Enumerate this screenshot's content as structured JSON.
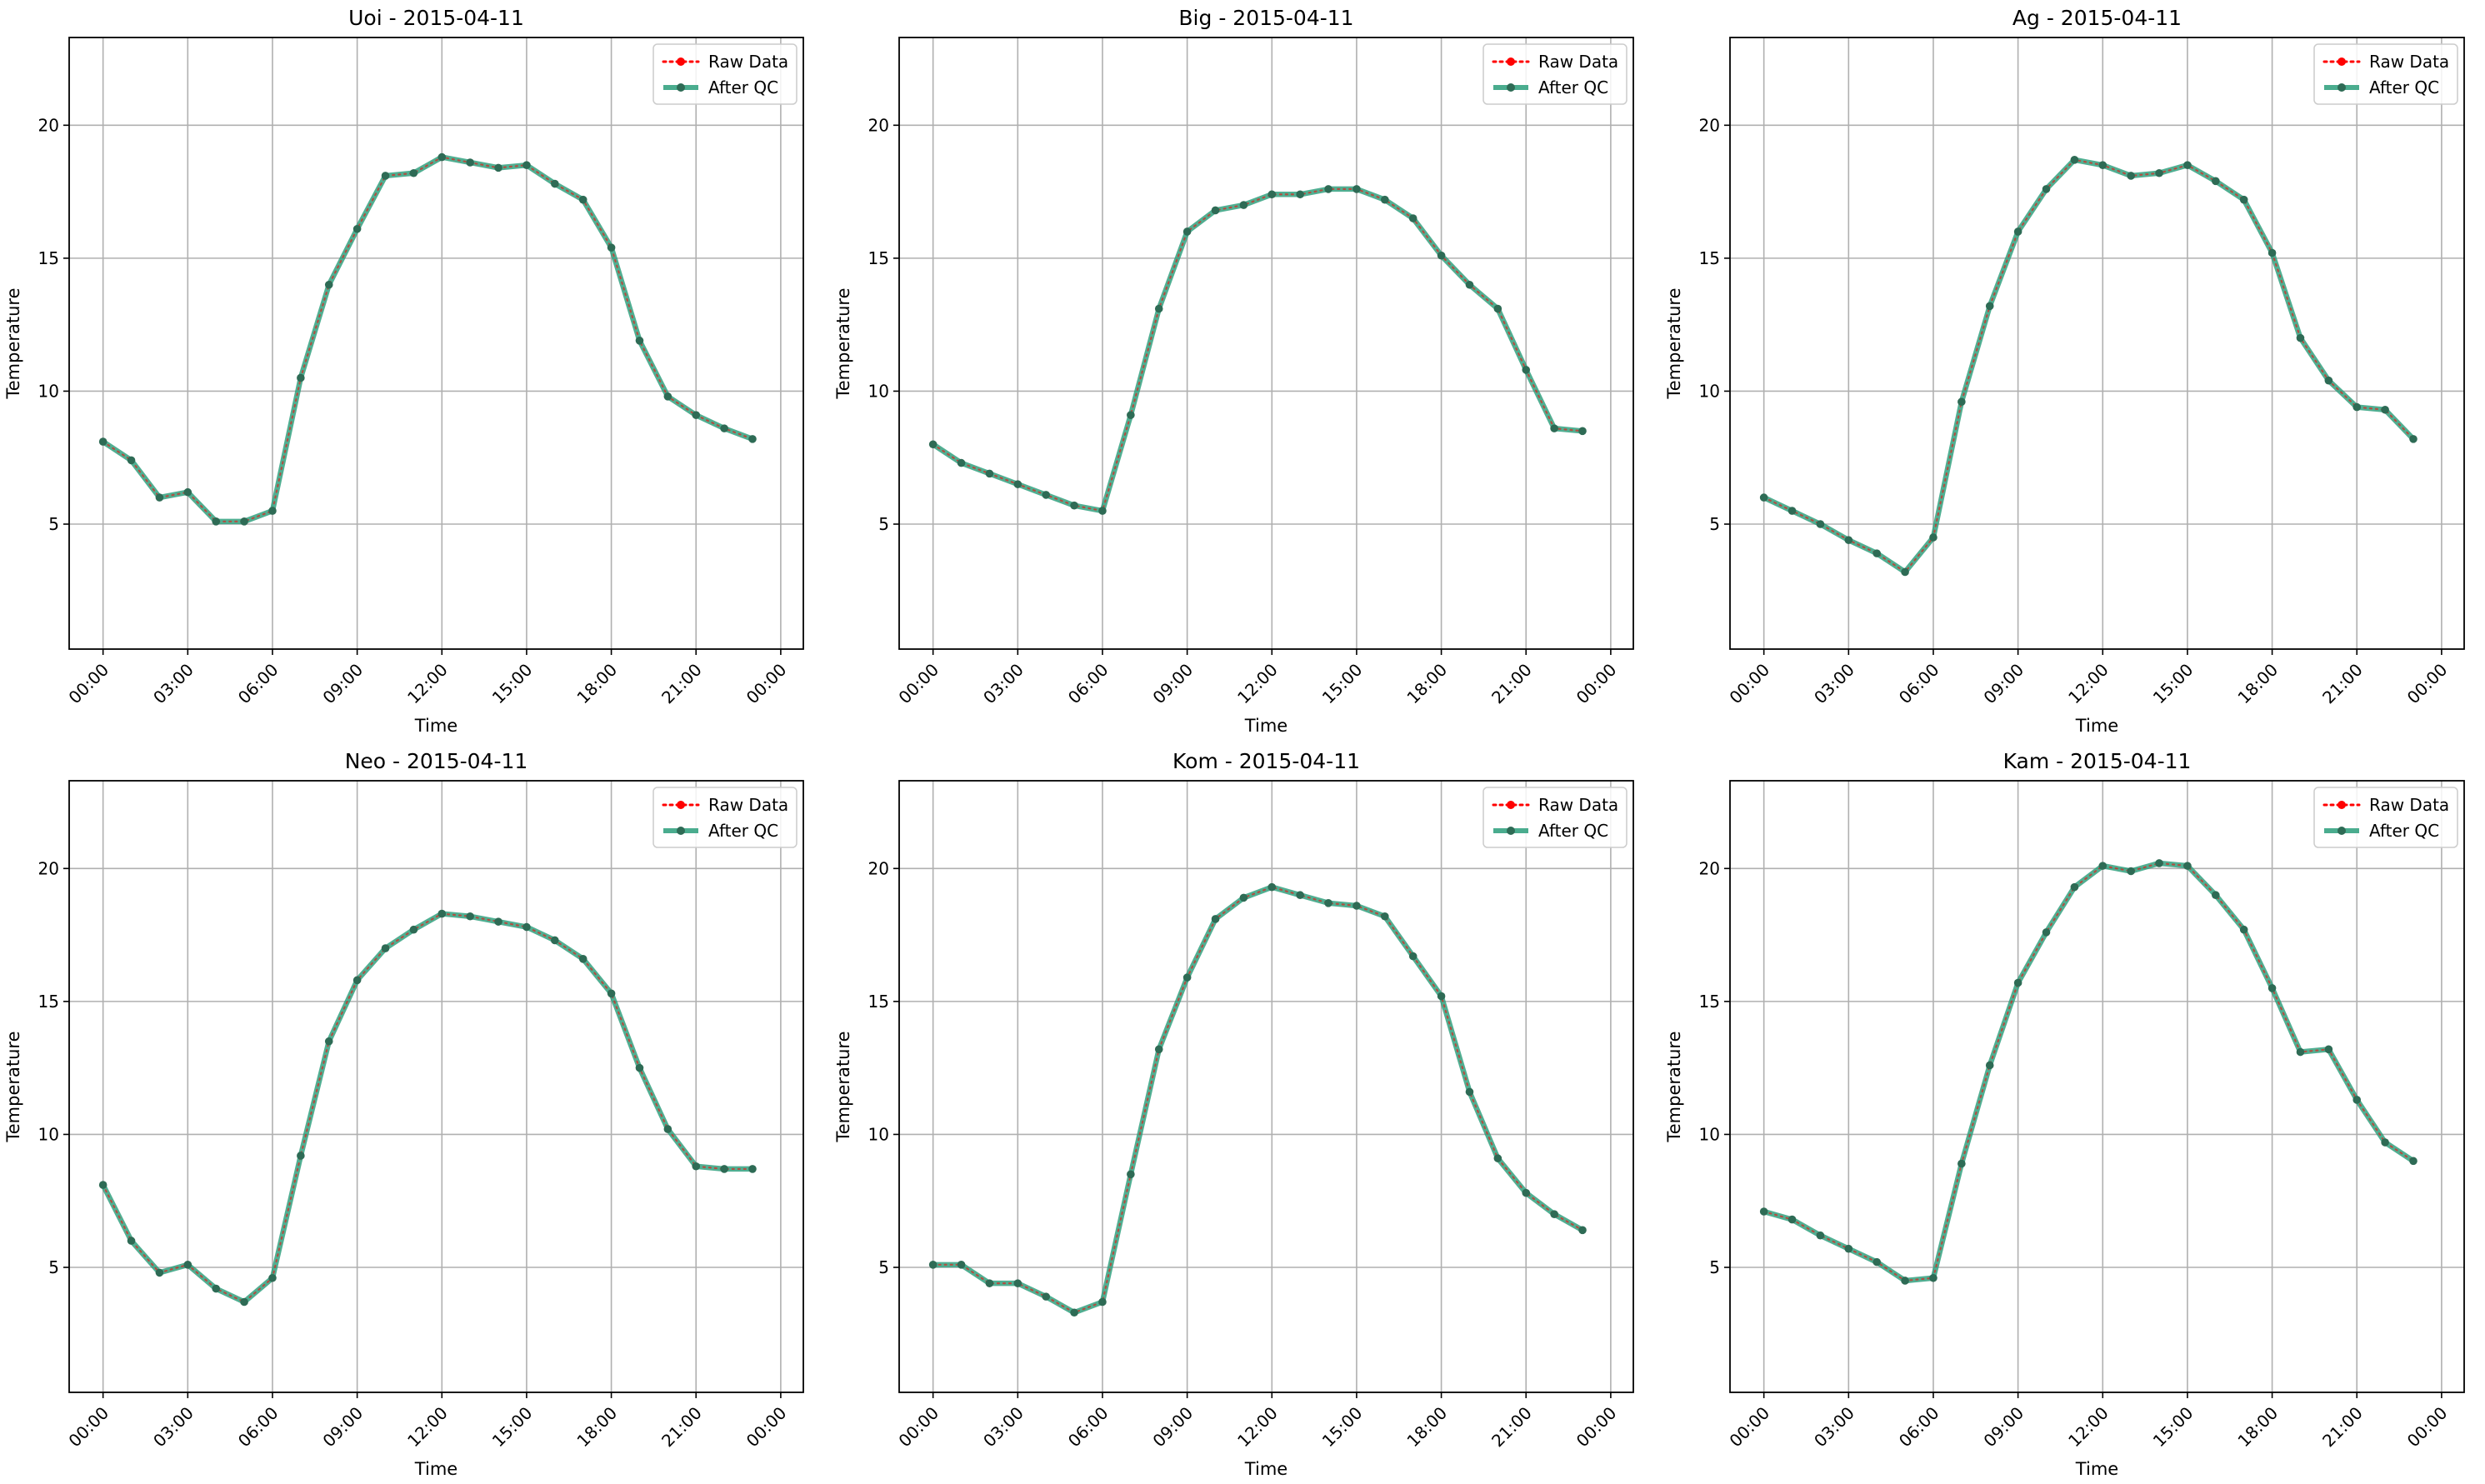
{
  "figure": {
    "legend": {
      "raw_label": "Raw Data",
      "qc_label": "After QC",
      "placement": "top-right"
    }
  },
  "chart_data": [
    {
      "type": "line",
      "title": "Uoi - 2015-04-11",
      "xlabel": "Time",
      "ylabel": "Temperature",
      "x": [
        "00:00",
        "01:00",
        "02:00",
        "03:00",
        "04:00",
        "05:00",
        "06:00",
        "07:00",
        "08:00",
        "09:00",
        "10:00",
        "11:00",
        "12:00",
        "13:00",
        "14:00",
        "15:00",
        "16:00",
        "17:00",
        "18:00",
        "19:00",
        "20:00",
        "21:00",
        "22:00",
        "23:00"
      ],
      "x_ticks": [
        "00:00",
        "03:00",
        "06:00",
        "09:00",
        "12:00",
        "15:00",
        "18:00",
        "21:00",
        "00:00"
      ],
      "y_ticks": [
        5,
        10,
        15,
        20
      ],
      "ylim": [
        0.3,
        23.3
      ],
      "grid": true,
      "legend_placement": "top-right",
      "series": [
        {
          "name": "Raw Data",
          "color": "#ff0000",
          "style": "dotted",
          "values": [
            8.1,
            7.4,
            6.0,
            6.2,
            5.1,
            5.1,
            5.5,
            10.5,
            14.0,
            16.1,
            18.1,
            18.2,
            18.8,
            18.6,
            18.4,
            18.5,
            17.8,
            17.2,
            15.4,
            11.9,
            9.8,
            9.1,
            8.6,
            8.2
          ]
        },
        {
          "name": "After QC",
          "color": "#2a9d7a",
          "style": "solid",
          "values": [
            8.1,
            7.4,
            6.0,
            6.2,
            5.1,
            5.1,
            5.5,
            10.5,
            14.0,
            16.1,
            18.1,
            18.2,
            18.8,
            18.6,
            18.4,
            18.5,
            17.8,
            17.2,
            15.4,
            11.9,
            9.8,
            9.1,
            8.6,
            8.2
          ]
        }
      ]
    },
    {
      "type": "line",
      "title": "Big - 2015-04-11",
      "xlabel": "Time",
      "ylabel": "Temperature",
      "x": [
        "00:00",
        "01:00",
        "02:00",
        "03:00",
        "04:00",
        "05:00",
        "06:00",
        "07:00",
        "08:00",
        "09:00",
        "10:00",
        "11:00",
        "12:00",
        "13:00",
        "14:00",
        "15:00",
        "16:00",
        "17:00",
        "18:00",
        "19:00",
        "20:00",
        "21:00",
        "22:00",
        "23:00"
      ],
      "x_ticks": [
        "00:00",
        "03:00",
        "06:00",
        "09:00",
        "12:00",
        "15:00",
        "18:00",
        "21:00",
        "00:00"
      ],
      "y_ticks": [
        5,
        10,
        15,
        20
      ],
      "ylim": [
        0.3,
        23.3
      ],
      "grid": true,
      "legend_placement": "top-right",
      "series": [
        {
          "name": "Raw Data",
          "color": "#ff0000",
          "style": "dotted",
          "values": [
            8.0,
            7.3,
            6.9,
            6.5,
            6.1,
            5.7,
            5.5,
            9.1,
            13.1,
            16.0,
            16.8,
            17.0,
            17.4,
            17.4,
            17.6,
            17.6,
            17.2,
            16.5,
            15.1,
            14.0,
            13.1,
            10.8,
            8.6,
            8.5
          ]
        },
        {
          "name": "After QC",
          "color": "#2a9d7a",
          "style": "solid",
          "values": [
            8.0,
            7.3,
            6.9,
            6.5,
            6.1,
            5.7,
            5.5,
            9.1,
            13.1,
            16.0,
            16.8,
            17.0,
            17.4,
            17.4,
            17.6,
            17.6,
            17.2,
            16.5,
            15.1,
            14.0,
            13.1,
            10.8,
            8.6,
            8.5
          ]
        }
      ]
    },
    {
      "type": "line",
      "title": "Ag - 2015-04-11",
      "xlabel": "Time",
      "ylabel": "Temperature",
      "x": [
        "00:00",
        "01:00",
        "02:00",
        "03:00",
        "04:00",
        "05:00",
        "06:00",
        "07:00",
        "08:00",
        "09:00",
        "10:00",
        "11:00",
        "12:00",
        "13:00",
        "14:00",
        "15:00",
        "16:00",
        "17:00",
        "18:00",
        "19:00",
        "20:00",
        "21:00",
        "22:00",
        "23:00"
      ],
      "x_ticks": [
        "00:00",
        "03:00",
        "06:00",
        "09:00",
        "12:00",
        "15:00",
        "18:00",
        "21:00",
        "00:00"
      ],
      "y_ticks": [
        5,
        10,
        15,
        20
      ],
      "ylim": [
        0.3,
        23.3
      ],
      "grid": true,
      "legend_placement": "top-right",
      "series": [
        {
          "name": "Raw Data",
          "color": "#ff0000",
          "style": "dotted",
          "values": [
            6.0,
            5.5,
            5.0,
            4.4,
            3.9,
            3.2,
            4.5,
            9.6,
            13.2,
            16.0,
            17.6,
            18.7,
            18.5,
            18.1,
            18.2,
            18.5,
            17.9,
            17.2,
            15.2,
            12.0,
            10.4,
            9.4,
            9.3,
            8.2
          ]
        },
        {
          "name": "After QC",
          "color": "#2a9d7a",
          "style": "solid",
          "values": [
            6.0,
            5.5,
            5.0,
            4.4,
            3.9,
            3.2,
            4.5,
            9.6,
            13.2,
            16.0,
            17.6,
            18.7,
            18.5,
            18.1,
            18.2,
            18.5,
            17.9,
            17.2,
            15.2,
            12.0,
            10.4,
            9.4,
            9.3,
            8.2
          ]
        }
      ]
    },
    {
      "type": "line",
      "title": "Neo - 2015-04-11",
      "xlabel": "Time",
      "ylabel": "Temperature",
      "x": [
        "00:00",
        "01:00",
        "02:00",
        "03:00",
        "04:00",
        "05:00",
        "06:00",
        "07:00",
        "08:00",
        "09:00",
        "10:00",
        "11:00",
        "12:00",
        "13:00",
        "14:00",
        "15:00",
        "16:00",
        "17:00",
        "18:00",
        "19:00",
        "20:00",
        "21:00",
        "22:00",
        "23:00"
      ],
      "x_ticks": [
        "00:00",
        "03:00",
        "06:00",
        "09:00",
        "12:00",
        "15:00",
        "18:00",
        "21:00",
        "00:00"
      ],
      "y_ticks": [
        5,
        10,
        15,
        20
      ],
      "ylim": [
        0.3,
        23.3
      ],
      "grid": true,
      "legend_placement": "top-right",
      "series": [
        {
          "name": "Raw Data",
          "color": "#ff0000",
          "style": "dotted",
          "values": [
            8.1,
            6.0,
            4.8,
            5.1,
            4.2,
            3.7,
            4.6,
            9.2,
            13.5,
            15.8,
            17.0,
            17.7,
            18.3,
            18.2,
            18.0,
            17.8,
            17.3,
            16.6,
            15.3,
            12.5,
            10.2,
            8.8,
            8.7,
            8.7
          ]
        },
        {
          "name": "After QC",
          "color": "#2a9d7a",
          "style": "solid",
          "values": [
            8.1,
            6.0,
            4.8,
            5.1,
            4.2,
            3.7,
            4.6,
            9.2,
            13.5,
            15.8,
            17.0,
            17.7,
            18.3,
            18.2,
            18.0,
            17.8,
            17.3,
            16.6,
            15.3,
            12.5,
            10.2,
            8.8,
            8.7,
            8.7
          ]
        }
      ]
    },
    {
      "type": "line",
      "title": "Kom - 2015-04-11",
      "xlabel": "Time",
      "ylabel": "Temperature",
      "x": [
        "00:00",
        "01:00",
        "02:00",
        "03:00",
        "04:00",
        "05:00",
        "06:00",
        "07:00",
        "08:00",
        "09:00",
        "10:00",
        "11:00",
        "12:00",
        "13:00",
        "14:00",
        "15:00",
        "16:00",
        "17:00",
        "18:00",
        "19:00",
        "20:00",
        "21:00",
        "22:00",
        "23:00"
      ],
      "x_ticks": [
        "00:00",
        "03:00",
        "06:00",
        "09:00",
        "12:00",
        "15:00",
        "18:00",
        "21:00",
        "00:00"
      ],
      "y_ticks": [
        5,
        10,
        15,
        20
      ],
      "ylim": [
        0.3,
        23.3
      ],
      "grid": true,
      "legend_placement": "top-right",
      "series": [
        {
          "name": "Raw Data",
          "color": "#ff0000",
          "style": "dotted",
          "values": [
            5.1,
            5.1,
            4.4,
            4.4,
            3.9,
            3.3,
            3.7,
            8.5,
            13.2,
            15.9,
            18.1,
            18.9,
            19.3,
            19.0,
            18.7,
            18.6,
            18.2,
            16.7,
            15.2,
            11.6,
            9.1,
            7.8,
            7.0,
            6.4
          ]
        },
        {
          "name": "After QC",
          "color": "#2a9d7a",
          "style": "solid",
          "values": [
            5.1,
            5.1,
            4.4,
            4.4,
            3.9,
            3.3,
            3.7,
            8.5,
            13.2,
            15.9,
            18.1,
            18.9,
            19.3,
            19.0,
            18.7,
            18.6,
            18.2,
            16.7,
            15.2,
            11.6,
            9.1,
            7.8,
            7.0,
            6.4
          ]
        }
      ]
    },
    {
      "type": "line",
      "title": "Kam - 2015-04-11",
      "xlabel": "Time",
      "ylabel": "Temperature",
      "x": [
        "00:00",
        "01:00",
        "02:00",
        "03:00",
        "04:00",
        "05:00",
        "06:00",
        "07:00",
        "08:00",
        "09:00",
        "10:00",
        "11:00",
        "12:00",
        "13:00",
        "14:00",
        "15:00",
        "16:00",
        "17:00",
        "18:00",
        "19:00",
        "20:00",
        "21:00",
        "22:00",
        "23:00"
      ],
      "x_ticks": [
        "00:00",
        "03:00",
        "06:00",
        "09:00",
        "12:00",
        "15:00",
        "18:00",
        "21:00",
        "00:00"
      ],
      "y_ticks": [
        5,
        10,
        15,
        20
      ],
      "ylim": [
        0.3,
        23.3
      ],
      "grid": true,
      "legend_placement": "top-right",
      "series": [
        {
          "name": "Raw Data",
          "color": "#ff0000",
          "style": "dotted",
          "values": [
            7.1,
            6.8,
            6.2,
            5.7,
            5.2,
            4.5,
            4.6,
            8.9,
            12.6,
            15.7,
            17.6,
            19.3,
            20.1,
            19.9,
            20.2,
            20.1,
            19.0,
            17.7,
            15.5,
            13.1,
            13.2,
            11.3,
            9.7,
            9.0
          ]
        },
        {
          "name": "After QC",
          "color": "#2a9d7a",
          "style": "solid",
          "values": [
            7.1,
            6.8,
            6.2,
            5.7,
            5.2,
            4.5,
            4.6,
            8.9,
            12.6,
            15.7,
            17.6,
            19.3,
            20.1,
            19.9,
            20.2,
            20.1,
            19.0,
            17.7,
            15.5,
            13.1,
            13.2,
            11.3,
            9.7,
            9.0
          ]
        }
      ]
    }
  ]
}
